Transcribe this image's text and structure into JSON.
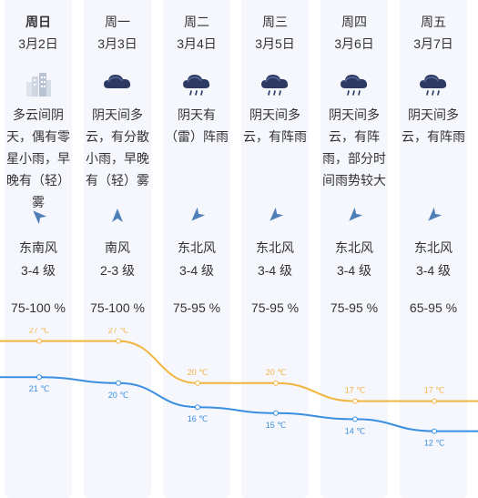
{
  "days": [
    {
      "day": "周日",
      "date": "3月2日",
      "icon": "cloudy-city-icon",
      "desc": "多云间阴天，偶有零星小雨，早晚有（轻）雾",
      "wind_dir": "东南风",
      "wind_level": "3-4 级",
      "humidity": "75-100 %",
      "wind_angle": -45
    },
    {
      "day": "周一",
      "date": "3月3日",
      "icon": "overcast-cloud-icon",
      "desc": "阴天间多云，有分散小雨，早晚有（轻）雾",
      "wind_dir": "南风",
      "wind_level": "2-3 级",
      "humidity": "75-100 %",
      "wind_angle": 0
    },
    {
      "day": "周二",
      "date": "3月4日",
      "icon": "rain-cloud-icon",
      "desc": "阴天有（雷）阵雨",
      "wind_dir": "东北风",
      "wind_level": "3-4 级",
      "humidity": "75-95 %",
      "wind_angle": -135
    },
    {
      "day": "周三",
      "date": "3月5日",
      "icon": "rain-cloud-icon",
      "desc": "阴天间多云，有阵雨",
      "wind_dir": "东北风",
      "wind_level": "3-4 级",
      "humidity": "75-95 %",
      "wind_angle": -135
    },
    {
      "day": "周四",
      "date": "3月6日",
      "icon": "rain-cloud-icon",
      "desc": "阴天间多云，有阵雨，部分时间雨势较大",
      "wind_dir": "东北风",
      "wind_level": "3-4 级",
      "humidity": "75-95 %",
      "wind_angle": -135
    },
    {
      "day": "周五",
      "date": "3月7日",
      "icon": "rain-cloud-icon",
      "desc": "阴天间多云，有阵雨",
      "wind_dir": "东北风",
      "wind_level": "3-4 级",
      "humidity": "65-95 %",
      "wind_angle": -135
    }
  ],
  "chart_data": {
    "type": "line",
    "categories": [
      "周日",
      "周一",
      "周二",
      "周三",
      "周四",
      "周五"
    ],
    "series": [
      {
        "values": [
          27,
          27,
          20,
          20,
          17,
          17
        ],
        "color": "#f2b440"
      },
      {
        "values": [
          21,
          20,
          16,
          15,
          14,
          12
        ],
        "color": "#3a8ee0"
      }
    ],
    "unit": "℃"
  }
}
